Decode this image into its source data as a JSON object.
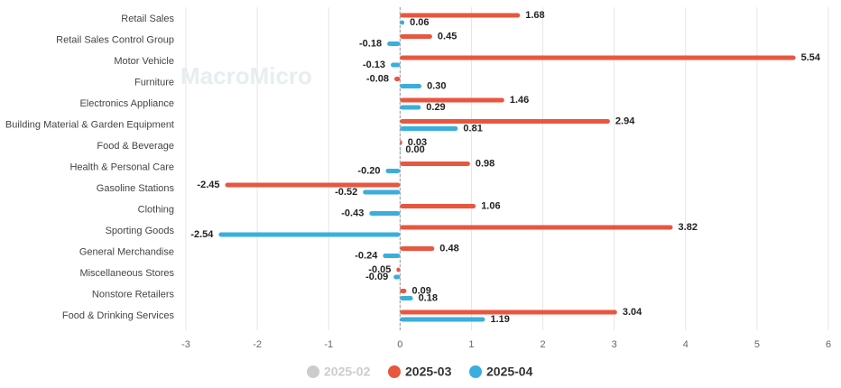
{
  "chart_data": {
    "type": "bar",
    "orientation": "horizontal",
    "watermark": "MacroMicro",
    "categories": [
      "Retail Sales",
      "Retail Sales Control Group",
      "Motor Vehicle",
      "Furniture",
      "Electronics Appliance",
      "Building Material & Garden Equipment",
      "Food & Beverage",
      "Health & Personal Care",
      "Gasoline Stations",
      "Clothing",
      "Sporting Goods",
      "General Merchandise",
      "Miscellaneous Stores",
      "Nonstore Retailers",
      "Food & Drinking Services"
    ],
    "series": [
      {
        "name": "2025-02",
        "color": "#cccccc",
        "visible": false,
        "values": [
          null,
          null,
          null,
          null,
          null,
          null,
          null,
          null,
          null,
          null,
          null,
          null,
          null,
          null,
          null
        ]
      },
      {
        "name": "2025-03",
        "color": "#e8563f",
        "visible": true,
        "values": [
          1.68,
          0.45,
          5.54,
          -0.08,
          1.46,
          2.94,
          0.03,
          0.98,
          -2.45,
          1.06,
          3.82,
          0.48,
          -0.05,
          0.09,
          3.04
        ],
        "value_labels": [
          "1.68",
          "0.45",
          "5.54",
          "-0.08",
          "1.46",
          "2.94",
          "0.03",
          "0.98",
          "-2.45",
          "1.06",
          "3.82",
          "0.48",
          "-0.05",
          "0.09",
          "3.04"
        ]
      },
      {
        "name": "2025-04",
        "color": "#3aaedc",
        "visible": true,
        "values": [
          0.06,
          -0.18,
          -0.13,
          0.3,
          0.29,
          0.81,
          0.0,
          -0.2,
          -0.52,
          -0.43,
          -2.54,
          -0.24,
          -0.09,
          0.18,
          1.19
        ],
        "value_labels": [
          "0.06",
          "-0.18",
          "-0.13",
          "0.30",
          "0.29",
          "0.81",
          "0.00",
          "-0.20",
          "-0.52",
          "-0.43",
          "-2.54",
          "-0.24",
          "-0.09",
          "0.18",
          "1.19"
        ]
      }
    ],
    "xlim": [
      -3,
      6
    ],
    "xticks": [
      -3,
      -2,
      -1,
      0,
      1,
      2,
      3,
      4,
      5,
      6
    ],
    "grid": true
  }
}
